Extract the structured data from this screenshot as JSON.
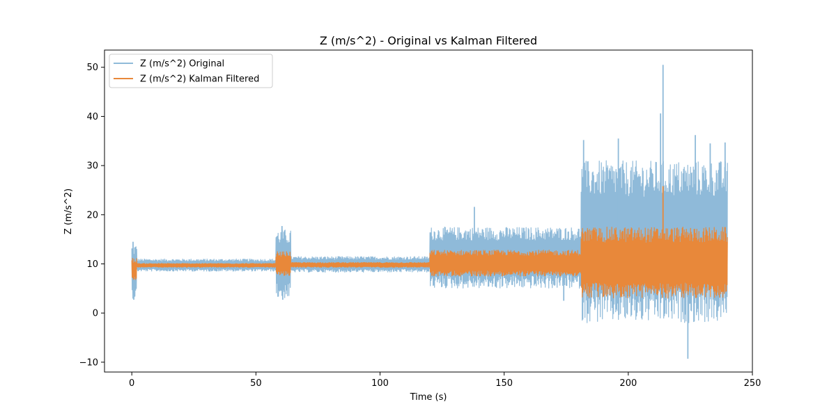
{
  "chart_data": {
    "type": "line",
    "title": "Z (m/s^2) - Original vs Kalman Filtered",
    "xlabel": "Time (s)",
    "ylabel": "Z (m/s^2)",
    "xlim": [
      -11,
      250
    ],
    "ylim": [
      -12,
      53.5
    ],
    "xticks": [
      0,
      50,
      100,
      150,
      200,
      250
    ],
    "xtick_labels": [
      "0",
      "50",
      "100",
      "150",
      "200",
      "250"
    ],
    "yticks": [
      -10,
      0,
      10,
      20,
      30,
      40,
      50
    ],
    "ytick_labels": [
      "−10",
      "0",
      "10",
      "20",
      "30",
      "40",
      "50"
    ],
    "grid": false,
    "legend_position": "upper-left",
    "series": [
      {
        "name": "Z (m/s^2) Original",
        "color": "#8fbad9",
        "envelope": [
          {
            "t_start": 0,
            "t_end": 2,
            "min": 3.0,
            "max": 14.0
          },
          {
            "t_start": 2,
            "t_end": 58,
            "min": 8.5,
            "max": 11.0
          },
          {
            "t_start": 58,
            "t_end": 64,
            "min": 3.0,
            "max": 17.0
          },
          {
            "t_start": 64,
            "t_end": 120,
            "min": 8.3,
            "max": 11.5
          },
          {
            "t_start": 120,
            "t_end": 181,
            "min": 5.0,
            "max": 17.5
          },
          {
            "t_start": 181,
            "t_end": 240,
            "min": -2.0,
            "max": 31.0
          }
        ],
        "spikes": [
          {
            "t": 0.5,
            "value": 14.5
          },
          {
            "t": 0.8,
            "value": 2.7
          },
          {
            "t": 60.5,
            "value": 17.7
          },
          {
            "t": 60.8,
            "value": 2.7
          },
          {
            "t": 138,
            "value": 21.6
          },
          {
            "t": 174,
            "value": 2.5
          },
          {
            "t": 182,
            "value": 35.2
          },
          {
            "t": 196,
            "value": 35.5
          },
          {
            "t": 213,
            "value": 40.6
          },
          {
            "t": 214,
            "value": 50.5
          },
          {
            "t": 224,
            "value": -9.3
          },
          {
            "t": 227,
            "value": 36.2
          },
          {
            "t": 233,
            "value": 34.5
          },
          {
            "t": 239,
            "value": 34.7
          }
        ]
      },
      {
        "name": "Z (m/s^2) Kalman Filtered",
        "color": "#e8883a",
        "envelope": [
          {
            "t_start": 0,
            "t_end": 2,
            "min": 6.5,
            "max": 11.2
          },
          {
            "t_start": 2,
            "t_end": 58,
            "min": 9.3,
            "max": 10.1
          },
          {
            "t_start": 58,
            "t_end": 64,
            "min": 7.5,
            "max": 12.5
          },
          {
            "t_start": 64,
            "t_end": 120,
            "min": 9.3,
            "max": 10.3
          },
          {
            "t_start": 120,
            "t_end": 181,
            "min": 7.5,
            "max": 12.8
          },
          {
            "t_start": 181,
            "t_end": 240,
            "min": 3.0,
            "max": 17.5
          }
        ],
        "spikes": [
          {
            "t": 214,
            "value": 25.8
          }
        ]
      }
    ]
  }
}
